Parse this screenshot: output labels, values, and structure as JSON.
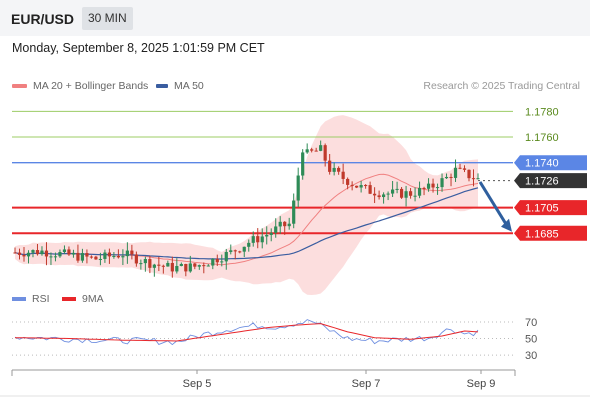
{
  "header": {
    "symbol": "EUR/USD",
    "interval": "30 MIN"
  },
  "timestamp": "Monday, September 8, 2025 1:01:59 PM CET",
  "legend": {
    "ma20_label": "MA 20 + Bollinger Bands",
    "ma50_label": "MA 50",
    "credit": "Research © 2025 Trading Central"
  },
  "rsi_legend": {
    "rsi_label": "RSI",
    "ma_label": "9MA"
  },
  "colors": {
    "bollinger_fill": "#fbd3d3",
    "ma20": "#f08080",
    "ma50": "#3a5da0",
    "resistance_green": "#9ccc65",
    "current_blue": "#5b86e5",
    "support_red": "#e8262a",
    "arrow": "#2f5f9e",
    "candle_up": "#2e8b57",
    "candle_down": "#c0392b",
    "rsi": "#6f8fe0",
    "rsi_ma": "#e8262a"
  },
  "chart_data": {
    "type": "candlestick",
    "x_ticks": [
      "Sep 5",
      "Sep 7",
      "Sep 9"
    ],
    "ylim": [
      1.1647,
      1.1792
    ],
    "levels": [
      {
        "label": "1.1780",
        "value": 1.178,
        "kind": "resistance"
      },
      {
        "label": "1.1760",
        "value": 1.176,
        "kind": "resistance"
      },
      {
        "label": "1.1740",
        "value": 1.174,
        "kind": "pivot"
      },
      {
        "label": "1.1726",
        "value": 1.1726,
        "kind": "current"
      },
      {
        "label": "1.1705",
        "value": 1.1705,
        "kind": "support"
      },
      {
        "label": "1.1685",
        "value": 1.1685,
        "kind": "support"
      }
    ],
    "arrow": {
      "from": 1.1725,
      "to": 1.1687,
      "direction": "down"
    },
    "anchors": [
      [
        0,
        1.167
      ],
      [
        6,
        1.1671
      ],
      [
        12,
        1.1668
      ],
      [
        18,
        1.1665
      ],
      [
        24,
        1.1669
      ],
      [
        28,
        1.1664
      ],
      [
        32,
        1.166
      ],
      [
        35,
        1.1658
      ],
      [
        40,
        1.1659
      ],
      [
        44,
        1.1664
      ],
      [
        48,
        1.167
      ],
      [
        52,
        1.1678
      ],
      [
        56,
        1.1684
      ],
      [
        59,
        1.169
      ],
      [
        61,
        1.1692
      ],
      [
        63,
        1.1725
      ],
      [
        64,
        1.1745
      ],
      [
        66,
        1.1748
      ],
      [
        68,
        1.175
      ],
      [
        70,
        1.1735
      ],
      [
        73,
        1.1728
      ],
      [
        76,
        1.1722
      ],
      [
        79,
        1.1718
      ],
      [
        83,
        1.1716
      ],
      [
        88,
        1.1716
      ],
      [
        92,
        1.172
      ],
      [
        96,
        1.1728
      ],
      [
        98,
        1.1734
      ],
      [
        101,
        1.173
      ],
      [
        103,
        1.1727
      ]
    ],
    "rsi": {
      "levels": [
        70,
        50,
        30
      ],
      "ylim": [
        18,
        82
      ],
      "anchors": [
        [
          0,
          52
        ],
        [
          10,
          50
        ],
        [
          20,
          48
        ],
        [
          30,
          47
        ],
        [
          36,
          46
        ],
        [
          42,
          55
        ],
        [
          48,
          62
        ],
        [
          54,
          66
        ],
        [
          58,
          64
        ],
        [
          62,
          68
        ],
        [
          66,
          71
        ],
        [
          70,
          60
        ],
        [
          74,
          50
        ],
        [
          80,
          47
        ],
        [
          86,
          49
        ],
        [
          92,
          51
        ],
        [
          97,
          62
        ],
        [
          100,
          56
        ],
        [
          103,
          58
        ]
      ],
      "ma_anchors": [
        [
          0,
          51
        ],
        [
          12,
          50
        ],
        [
          24,
          48
        ],
        [
          36,
          47
        ],
        [
          46,
          55
        ],
        [
          56,
          63
        ],
        [
          62,
          66
        ],
        [
          68,
          68
        ],
        [
          74,
          58
        ],
        [
          80,
          51
        ],
        [
          88,
          49
        ],
        [
          95,
          53
        ],
        [
          100,
          59
        ],
        [
          103,
          58
        ]
      ]
    }
  }
}
